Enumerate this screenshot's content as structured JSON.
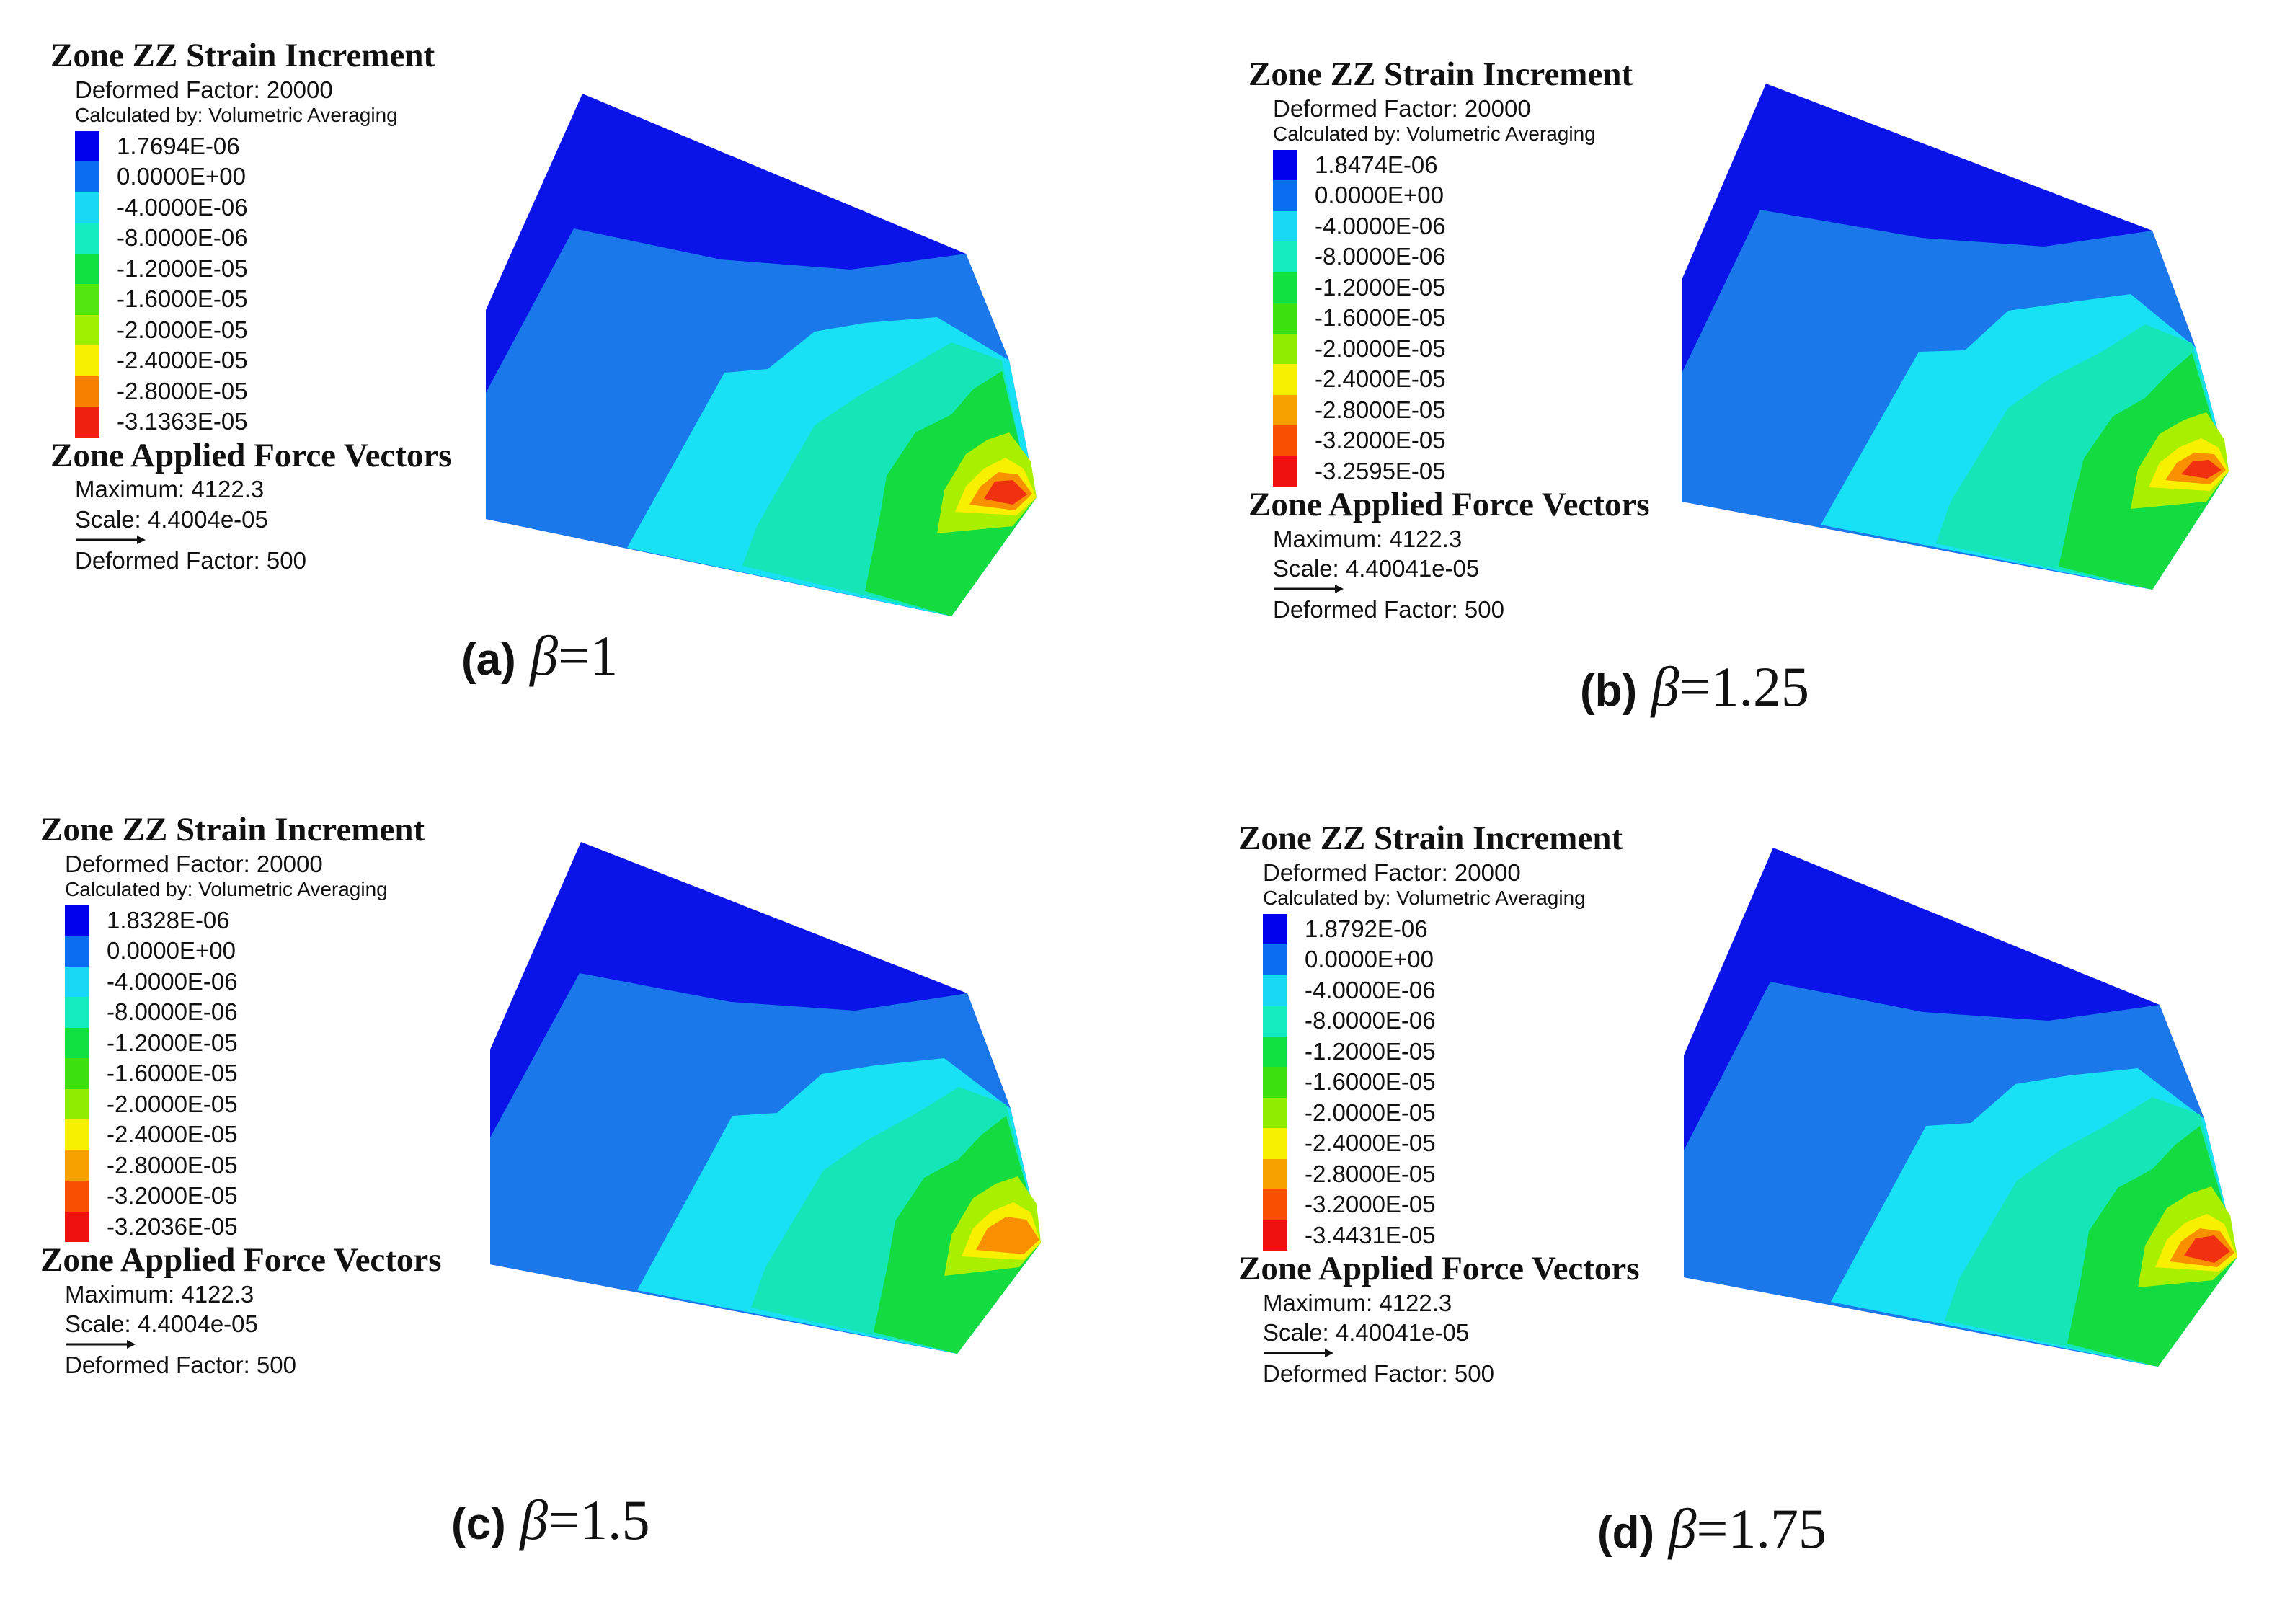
{
  "panels": [
    {
      "id": "a",
      "title": "Zone ZZ Strain Increment",
      "deformed": "Deformed Factor: 20000",
      "calc": "Calculated by: Volumetric Averaging",
      "scale": [
        "1.7694E-06",
        "0.0000E+00",
        "-4.0000E-06",
        "-8.0000E-06",
        "-1.2000E-05",
        "-1.6000E-05",
        "-2.0000E-05",
        "-2.4000E-05",
        "-2.8000E-05",
        "-3.1363E-05"
      ],
      "force_title": "Zone Applied Force Vectors",
      "maximum": "Maximum: 4122.3",
      "scale_text": "Scale: 4.4004e-05",
      "force_deformed": "Deformed Factor: 500",
      "caption_label": "(a)",
      "caption_beta": "β",
      "caption_value": "=1"
    },
    {
      "id": "b",
      "title": "Zone ZZ Strain Increment",
      "deformed": "Deformed Factor: 20000",
      "calc": "Calculated by: Volumetric Averaging",
      "scale": [
        "1.8474E-06",
        "0.0000E+00",
        "-4.0000E-06",
        "-8.0000E-06",
        "-1.2000E-05",
        "-1.6000E-05",
        "-2.0000E-05",
        "-2.4000E-05",
        "-2.8000E-05",
        "-3.2000E-05",
        "-3.2595E-05"
      ],
      "force_title": "Zone Applied Force Vectors",
      "maximum": "Maximum: 4122.3",
      "scale_text": "Scale: 4.40041e-05",
      "force_deformed": "Deformed Factor: 500",
      "caption_label": "(b)",
      "caption_beta": "β",
      "caption_value": "=1.25"
    },
    {
      "id": "c",
      "title": "Zone ZZ Strain Increment",
      "deformed": "Deformed Factor: 20000",
      "calc": "Calculated by: Volumetric Averaging",
      "scale": [
        "1.8328E-06",
        "0.0000E+00",
        "-4.0000E-06",
        "-8.0000E-06",
        "-1.2000E-05",
        "-1.6000E-05",
        "-2.0000E-05",
        "-2.4000E-05",
        "-2.8000E-05",
        "-3.2000E-05",
        "-3.2036E-05"
      ],
      "force_title": "Zone Applied Force Vectors",
      "maximum": "Maximum: 4122.3",
      "scale_text": "Scale: 4.4004e-05",
      "force_deformed": "Deformed Factor: 500",
      "caption_label": "(c)",
      "caption_beta": "β",
      "caption_value": "=1.5"
    },
    {
      "id": "d",
      "title": "Zone ZZ Strain Increment",
      "deformed": "Deformed Factor: 20000",
      "calc": "Calculated by: Volumetric Averaging",
      "scale": [
        "1.8792E-06",
        "0.0000E+00",
        "-4.0000E-06",
        "-8.0000E-06",
        "-1.2000E-05",
        "-1.6000E-05",
        "-2.0000E-05",
        "-2.4000E-05",
        "-2.8000E-05",
        "-3.2000E-05",
        "-3.4431E-05"
      ],
      "force_title": "Zone Applied Force Vectors",
      "maximum": "Maximum: 4122.3",
      "scale_text": "Scale: 4.40041e-05",
      "force_deformed": "Deformed Factor: 500",
      "caption_label": "(d)",
      "caption_beta": "β",
      "caption_value": "=1.75"
    }
  ],
  "colors": {
    "scale10": [
      "#0000ee",
      "#0a6ef0",
      "#19d8f5",
      "#14ecc0",
      "#10e040",
      "#52e810",
      "#9ff000",
      "#f7f000",
      "#f88000",
      "#f02010"
    ],
    "scale11": [
      "#0000ee",
      "#0a6ef0",
      "#19d8f5",
      "#14ecc0",
      "#10e040",
      "#3ee010",
      "#90ec00",
      "#f7f000",
      "#f8a000",
      "#f85000",
      "#f01010"
    ],
    "contour": [
      "#0a14e8",
      "#1a78ea",
      "#18e0f5",
      "#14e6b8",
      "#14dc40",
      "#a8f000",
      "#f8f000",
      "#f89000",
      "#f03010"
    ]
  }
}
